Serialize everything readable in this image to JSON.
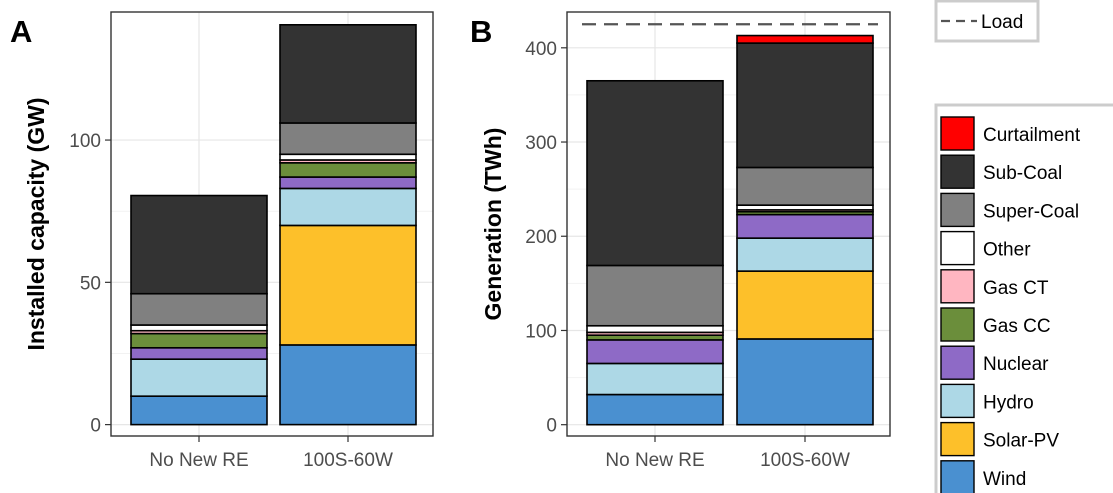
{
  "chart_data": [
    {
      "type": "bar",
      "stacked": true,
      "panel_label": "A",
      "ylabel": "Installed capacity (GW)",
      "xlabel": "",
      "categories": [
        "No New RE",
        "100S-60W"
      ],
      "ylim": [
        -4,
        145
      ],
      "yticks": [
        0,
        50,
        100
      ],
      "grid": true,
      "series": [
        {
          "name": "Wind",
          "values": [
            10,
            28
          ]
        },
        {
          "name": "Solar-PV",
          "values": [
            0,
            42
          ]
        },
        {
          "name": "Hydro",
          "values": [
            13,
            13
          ]
        },
        {
          "name": "Nuclear",
          "values": [
            4,
            4
          ]
        },
        {
          "name": "Gas CC",
          "values": [
            5,
            5
          ]
        },
        {
          "name": "Gas CT",
          "values": [
            1,
            1
          ]
        },
        {
          "name": "Other",
          "values": [
            2,
            2
          ]
        },
        {
          "name": "Super-Coal",
          "values": [
            11,
            11
          ]
        },
        {
          "name": "Sub-Coal",
          "values": [
            34.5,
            34.5
          ]
        },
        {
          "name": "Curtailment",
          "values": [
            0,
            0
          ]
        }
      ]
    },
    {
      "type": "bar",
      "stacked": true,
      "panel_label": "B",
      "ylabel": "Generation (TWh)",
      "xlabel": "",
      "categories": [
        "No New RE",
        "100S-60W"
      ],
      "ylim": [
        -12,
        438
      ],
      "yticks": [
        0,
        100,
        200,
        300,
        400
      ],
      "grid": true,
      "reference_line": {
        "name": "Load",
        "value": 425
      },
      "series": [
        {
          "name": "Wind",
          "values": [
            32,
            91
          ]
        },
        {
          "name": "Solar-PV",
          "values": [
            0,
            72
          ]
        },
        {
          "name": "Hydro",
          "values": [
            33,
            35
          ]
        },
        {
          "name": "Nuclear",
          "values": [
            25,
            25
          ]
        },
        {
          "name": "Gas CC",
          "values": [
            5,
            3
          ]
        },
        {
          "name": "Gas CT",
          "values": [
            3,
            2
          ]
        },
        {
          "name": "Other",
          "values": [
            7,
            5
          ]
        },
        {
          "name": "Super-Coal",
          "values": [
            64,
            40
          ]
        },
        {
          "name": "Sub-Coal",
          "values": [
            196,
            132
          ]
        },
        {
          "name": "Curtailment",
          "values": [
            0,
            8
          ]
        }
      ]
    }
  ],
  "legend": {
    "line_entry": "Load",
    "entries": [
      "Curtailment",
      "Sub-Coal",
      "Super-Coal",
      "Other",
      "Gas CT",
      "Gas CC",
      "Nuclear",
      "Hydro",
      "Solar-PV",
      "Wind"
    ],
    "placement": "right"
  },
  "colors": {
    "Wind": "#4a90d0",
    "Solar-PV": "#fdc02a",
    "Hydro": "#add8e6",
    "Nuclear": "#8e6ac6",
    "Gas CC": "#6b8e3b",
    "Gas CT": "#ffb6c1",
    "Other": "#ffffff",
    "Super-Coal": "#808080",
    "Sub-Coal": "#333333",
    "Curtailment": "#ff0000",
    "Load": "#555555"
  }
}
